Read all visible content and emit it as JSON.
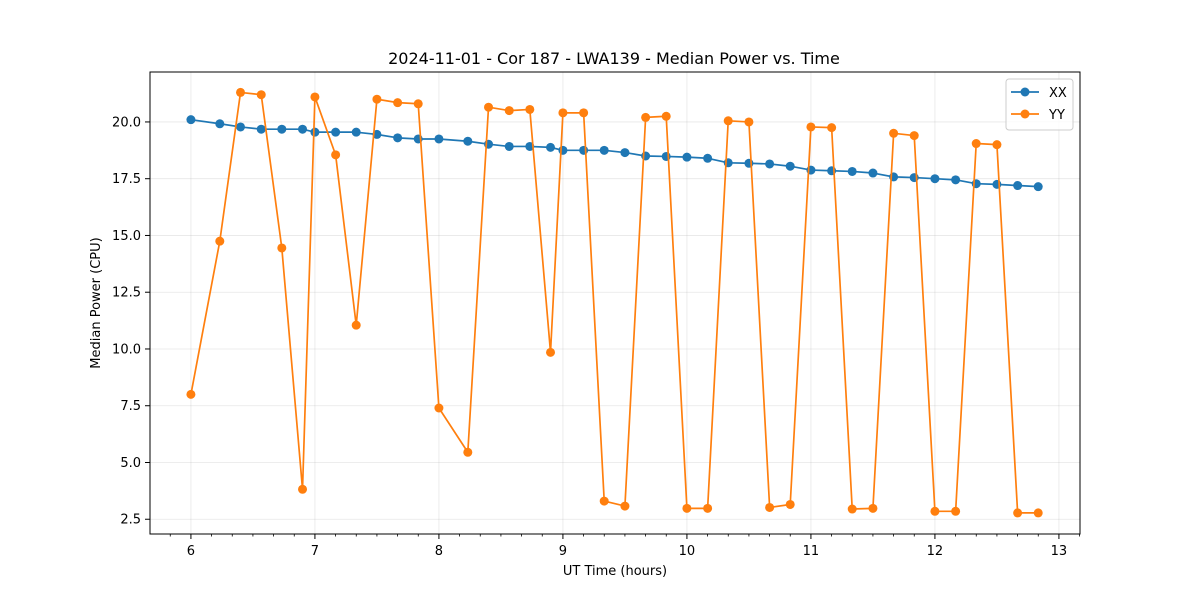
{
  "chart_data": {
    "type": "line",
    "title": "2024-11-01 - Cor 187 - LWA139 - Median Power vs. Time",
    "xlabel": "UT Time (hours)",
    "ylabel": "Median Power (CPU)",
    "xlim": [
      5.67,
      13.17
    ],
    "ylim": [
      1.85,
      22.2
    ],
    "xticks": [
      6,
      7,
      8,
      9,
      10,
      11,
      12,
      13
    ],
    "xtick_labels": [
      "6",
      "7",
      "8",
      "9",
      "10",
      "11",
      "12",
      "13"
    ],
    "yticks": [
      2.5,
      5.0,
      7.5,
      10.0,
      12.5,
      15.0,
      17.5,
      20.0
    ],
    "ytick_labels": [
      "2.5",
      "5.0",
      "7.5",
      "10.0",
      "12.5",
      "15.0",
      "17.5",
      "20.0"
    ],
    "grid": true,
    "legend_position": "top-right",
    "series": [
      {
        "name": "XX",
        "color": "#1f77b4",
        "x": [
          6.0,
          6.233,
          6.4,
          6.567,
          6.733,
          6.9,
          7.0,
          7.167,
          7.333,
          7.5,
          7.667,
          7.833,
          8.0,
          8.233,
          8.4,
          8.567,
          8.733,
          8.9,
          9.0,
          9.167,
          9.333,
          9.5,
          9.667,
          9.833,
          10.0,
          10.167,
          10.333,
          10.5,
          10.667,
          10.833,
          11.0,
          11.167,
          11.333,
          11.5,
          11.667,
          11.833,
          12.0,
          12.167,
          12.333,
          12.5,
          12.667,
          12.833
        ],
        "y": [
          20.1,
          19.92,
          19.78,
          19.68,
          19.68,
          19.68,
          19.55,
          19.55,
          19.55,
          19.45,
          19.3,
          19.25,
          19.25,
          19.15,
          19.02,
          18.92,
          18.92,
          18.88,
          18.75,
          18.75,
          18.75,
          18.65,
          18.5,
          18.48,
          18.45,
          18.4,
          18.2,
          18.18,
          18.15,
          18.05,
          17.88,
          17.85,
          17.82,
          17.75,
          17.58,
          17.55,
          17.5,
          17.45,
          17.28,
          17.25,
          17.2,
          17.15
        ]
      },
      {
        "name": "YY",
        "color": "#ff7f0e",
        "x": [
          6.0,
          6.233,
          6.4,
          6.567,
          6.733,
          6.9,
          7.0,
          7.167,
          7.333,
          7.5,
          7.667,
          7.833,
          8.0,
          8.233,
          8.4,
          8.567,
          8.733,
          8.9,
          9.0,
          9.167,
          9.333,
          9.5,
          9.667,
          9.833,
          10.0,
          10.167,
          10.333,
          10.5,
          10.667,
          10.833,
          11.0,
          11.167,
          11.333,
          11.5,
          11.667,
          11.833,
          12.0,
          12.167,
          12.333,
          12.5,
          12.667,
          12.833
        ],
        "y": [
          8.0,
          14.75,
          21.3,
          21.2,
          14.45,
          3.82,
          21.1,
          18.55,
          11.05,
          21.0,
          20.85,
          20.8,
          7.4,
          5.45,
          20.65,
          20.5,
          20.55,
          9.85,
          20.4,
          20.4,
          3.3,
          3.08,
          20.2,
          20.25,
          2.98,
          2.98,
          20.05,
          20.0,
          3.02,
          3.15,
          19.78,
          19.75,
          2.95,
          2.98,
          19.5,
          19.4,
          2.85,
          2.85,
          19.05,
          19.0,
          2.78,
          2.78
        ]
      }
    ]
  }
}
